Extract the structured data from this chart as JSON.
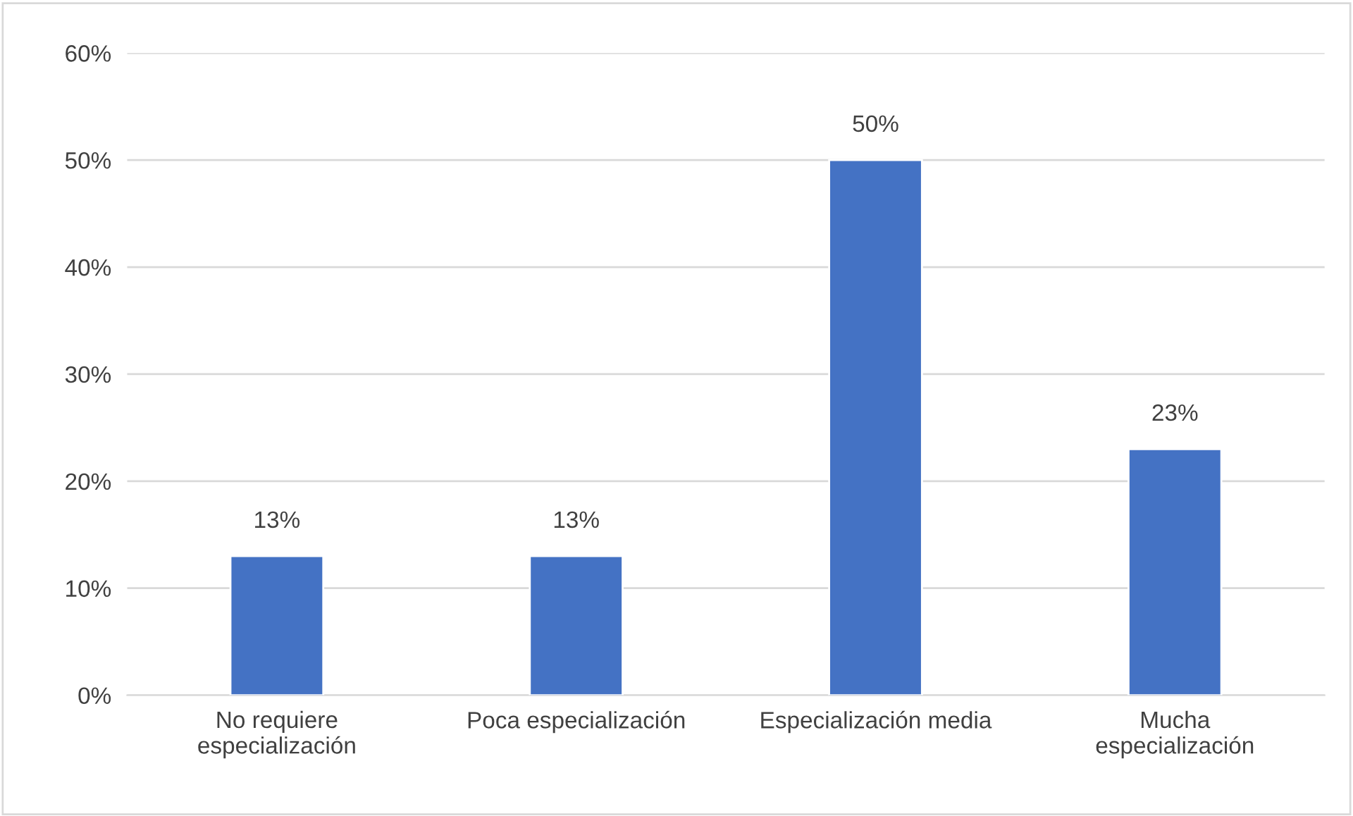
{
  "chart_data": {
    "type": "bar",
    "categories": [
      "No requiere\nespecialización",
      "Poca especialización",
      "Especialización media",
      "Mucha\nespecialización"
    ],
    "values": [
      13,
      13,
      50,
      23
    ],
    "value_labels": [
      "13%",
      "13%",
      "50%",
      "23%"
    ],
    "color": "#4472c4",
    "ylim": [
      0,
      60
    ],
    "yticks": [
      {
        "value": 0,
        "label": "0%"
      },
      {
        "value": 10,
        "label": "10%"
      },
      {
        "value": 20,
        "label": "20%"
      },
      {
        "value": 30,
        "label": "30%"
      },
      {
        "value": 40,
        "label": "40%"
      },
      {
        "value": 50,
        "label": "50%"
      },
      {
        "value": 60,
        "label": "60%"
      }
    ],
    "grid": "y"
  }
}
